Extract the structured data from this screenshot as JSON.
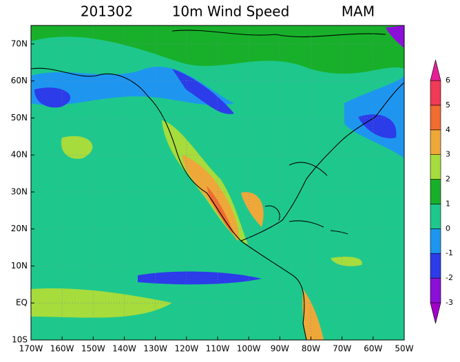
{
  "map": {
    "title": [
      "201302",
      "10m Wind Speed",
      "MAM"
    ],
    "xlim": [
      -170,
      -50
    ],
    "ylim": [
      -10,
      75
    ],
    "xticks": [
      {
        "value": -170,
        "label": "170W"
      },
      {
        "value": -160,
        "label": "160W"
      },
      {
        "value": -150,
        "label": "150W"
      },
      {
        "value": -140,
        "label": "140W"
      },
      {
        "value": -130,
        "label": "130W"
      },
      {
        "value": -120,
        "label": "120W"
      },
      {
        "value": -110,
        "label": "110W"
      },
      {
        "value": -100,
        "label": "100W"
      },
      {
        "value": -90,
        "label": "90W"
      },
      {
        "value": -80,
        "label": "80W"
      },
      {
        "value": -70,
        "label": "70W"
      },
      {
        "value": -60,
        "label": "60W"
      },
      {
        "value": -50,
        "label": "50W"
      }
    ],
    "yticks": [
      {
        "value": -10,
        "label": "10S"
      },
      {
        "value": 0,
        "label": "EQ"
      },
      {
        "value": 10,
        "label": "10N"
      },
      {
        "value": 20,
        "label": "20N"
      },
      {
        "value": 30,
        "label": "30N"
      },
      {
        "value": 40,
        "label": "40N"
      },
      {
        "value": 50,
        "label": "50N"
      },
      {
        "value": 60,
        "label": "60N"
      },
      {
        "value": 70,
        "label": "70N"
      }
    ],
    "grid": true,
    "colorbar": {
      "levels": [
        -3,
        -2,
        -1,
        0,
        1,
        2,
        3,
        4,
        5,
        6
      ],
      "colors": [
        "#a000c8",
        "#8a10d8",
        "#2c3ce8",
        "#1e96f0",
        "#1ec88c",
        "#18b02a",
        "#a6dc3c",
        "#eea83a",
        "#f06c30",
        "#f03a56",
        "#e61e96"
      ]
    }
  }
}
